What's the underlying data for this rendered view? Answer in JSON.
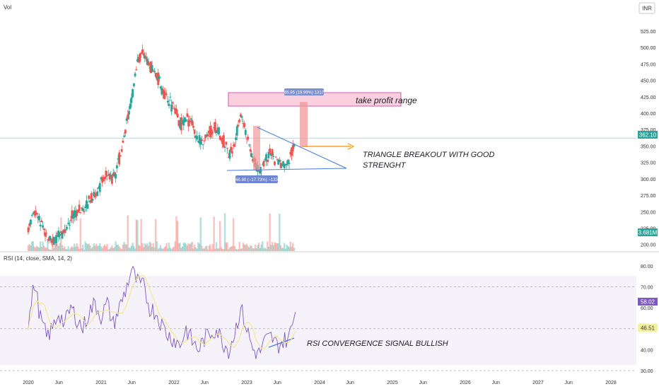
{
  "header": {
    "volume_label": "Vol",
    "currency_label": "INR"
  },
  "chart_data": [
    {
      "type": "candlestick",
      "currency": "INR",
      "x_ticks": [
        "2020",
        "Jun",
        "2021",
        "Jun",
        "2022",
        "Jun",
        "2023",
        "Jun",
        "2024",
        "Jun",
        "2025",
        "Jun",
        "2026",
        "Jun",
        "2027",
        "Jun",
        "2028"
      ],
      "y_ticks": [
        200,
        225,
        250,
        275,
        300,
        325,
        350,
        375,
        400,
        425,
        450,
        475,
        500,
        525
      ],
      "ylim": [
        190,
        540
      ],
      "last_price": "362.10",
      "volume_last": "3.681M",
      "colors": {
        "up": "#26a69a",
        "down": "#ef5350",
        "last_price": "#26a69a",
        "note_arrow": "#f5a623",
        "triangle": "#4a7cdc",
        "rsi_line": "#7e57c2",
        "rsi_sma": "#f0e68c"
      },
      "monthly_closes": [
        {
          "d": "2020-01",
          "v": 225
        },
        {
          "d": "2020-02",
          "v": 250
        },
        {
          "d": "2020-03",
          "v": 235
        },
        {
          "d": "2020-04",
          "v": 215
        },
        {
          "d": "2020-05",
          "v": 205
        },
        {
          "d": "2020-06",
          "v": 210
        },
        {
          "d": "2020-07",
          "v": 220
        },
        {
          "d": "2020-08",
          "v": 240
        },
        {
          "d": "2020-09",
          "v": 250
        },
        {
          "d": "2020-10",
          "v": 255
        },
        {
          "d": "2020-11",
          "v": 268
        },
        {
          "d": "2020-12",
          "v": 275
        },
        {
          "d": "2021-01",
          "v": 292
        },
        {
          "d": "2021-02",
          "v": 310
        },
        {
          "d": "2021-03",
          "v": 300
        },
        {
          "d": "2021-04",
          "v": 330
        },
        {
          "d": "2021-05",
          "v": 375
        },
        {
          "d": "2021-06",
          "v": 420
        },
        {
          "d": "2021-07",
          "v": 480
        },
        {
          "d": "2021-08",
          "v": 490
        },
        {
          "d": "2021-09",
          "v": 470
        },
        {
          "d": "2021-10",
          "v": 460
        },
        {
          "d": "2021-11",
          "v": 440
        },
        {
          "d": "2021-12",
          "v": 420
        },
        {
          "d": "2022-01",
          "v": 410
        },
        {
          "d": "2022-02",
          "v": 380
        },
        {
          "d": "2022-03",
          "v": 395
        },
        {
          "d": "2022-04",
          "v": 385
        },
        {
          "d": "2022-05",
          "v": 360
        },
        {
          "d": "2022-06",
          "v": 355
        },
        {
          "d": "2022-07",
          "v": 372
        },
        {
          "d": "2022-08",
          "v": 378
        },
        {
          "d": "2022-09",
          "v": 360
        },
        {
          "d": "2022-10",
          "v": 340
        },
        {
          "d": "2022-11",
          "v": 350
        },
        {
          "d": "2022-12",
          "v": 400
        },
        {
          "d": "2023-01",
          "v": 365
        },
        {
          "d": "2023-02",
          "v": 330
        },
        {
          "d": "2023-03",
          "v": 312
        },
        {
          "d": "2023-04",
          "v": 330
        },
        {
          "d": "2023-05",
          "v": 340
        },
        {
          "d": "2023-06",
          "v": 325
        },
        {
          "d": "2023-07",
          "v": 318
        },
        {
          "d": "2023-08",
          "v": 325
        },
        {
          "d": "2023-09",
          "v": 362
        }
      ],
      "rsi": {
        "label": "RSI (14, close, SMA, 14, 2)",
        "y_ticks": [
          30,
          40,
          50,
          60,
          70,
          80
        ],
        "ylim": [
          28,
          82
        ],
        "last_rsi": "58.02",
        "last_sma": "46.51",
        "monthly_rsi": [
          {
            "d": "2020-01",
            "v": 52
          },
          {
            "d": "2020-02",
            "v": 72
          },
          {
            "d": "2020-03",
            "v": 55
          },
          {
            "d": "2020-04",
            "v": 46
          },
          {
            "d": "2020-05",
            "v": 50
          },
          {
            "d": "2020-06",
            "v": 58
          },
          {
            "d": "2020-07",
            "v": 52
          },
          {
            "d": "2020-08",
            "v": 60
          },
          {
            "d": "2020-09",
            "v": 55
          },
          {
            "d": "2020-10",
            "v": 50
          },
          {
            "d": "2020-11",
            "v": 58
          },
          {
            "d": "2020-12",
            "v": 62
          },
          {
            "d": "2021-01",
            "v": 56
          },
          {
            "d": "2021-02",
            "v": 62
          },
          {
            "d": "2021-03",
            "v": 52
          },
          {
            "d": "2021-04",
            "v": 60
          },
          {
            "d": "2021-05",
            "v": 68
          },
          {
            "d": "2021-06",
            "v": 78
          },
          {
            "d": "2021-07",
            "v": 72
          },
          {
            "d": "2021-08",
            "v": 70
          },
          {
            "d": "2021-09",
            "v": 60
          },
          {
            "d": "2021-10",
            "v": 58
          },
          {
            "d": "2021-11",
            "v": 52
          },
          {
            "d": "2021-12",
            "v": 47
          },
          {
            "d": "2022-01",
            "v": 45
          },
          {
            "d": "2022-02",
            "v": 42
          },
          {
            "d": "2022-03",
            "v": 50
          },
          {
            "d": "2022-04",
            "v": 44
          },
          {
            "d": "2022-05",
            "v": 40
          },
          {
            "d": "2022-06",
            "v": 45
          },
          {
            "d": "2022-07",
            "v": 48
          },
          {
            "d": "2022-08",
            "v": 50
          },
          {
            "d": "2022-09",
            "v": 44
          },
          {
            "d": "2022-10",
            "v": 40
          },
          {
            "d": "2022-11",
            "v": 48
          },
          {
            "d": "2022-12",
            "v": 60
          },
          {
            "d": "2023-01",
            "v": 50
          },
          {
            "d": "2023-02",
            "v": 40
          },
          {
            "d": "2023-03",
            "v": 38
          },
          {
            "d": "2023-04",
            "v": 44
          },
          {
            "d": "2023-05",
            "v": 46
          },
          {
            "d": "2023-06",
            "v": 42
          },
          {
            "d": "2023-07",
            "v": 44
          },
          {
            "d": "2023-08",
            "v": 46
          },
          {
            "d": "2023-09",
            "v": 58
          }
        ]
      },
      "annotations": {
        "take_profit": "take profit range",
        "measure_up": "65.95 (19.99%) 1317",
        "measure_down": "−66.80 (−17.73%) −1336",
        "breakout_line1": "TRIANGLE BREAKOUT WITH GOOD",
        "breakout_line2": "STRENGHT",
        "rsi_note": "RSI CONVERGENCE SIGNAL BULLISH"
      }
    }
  ]
}
